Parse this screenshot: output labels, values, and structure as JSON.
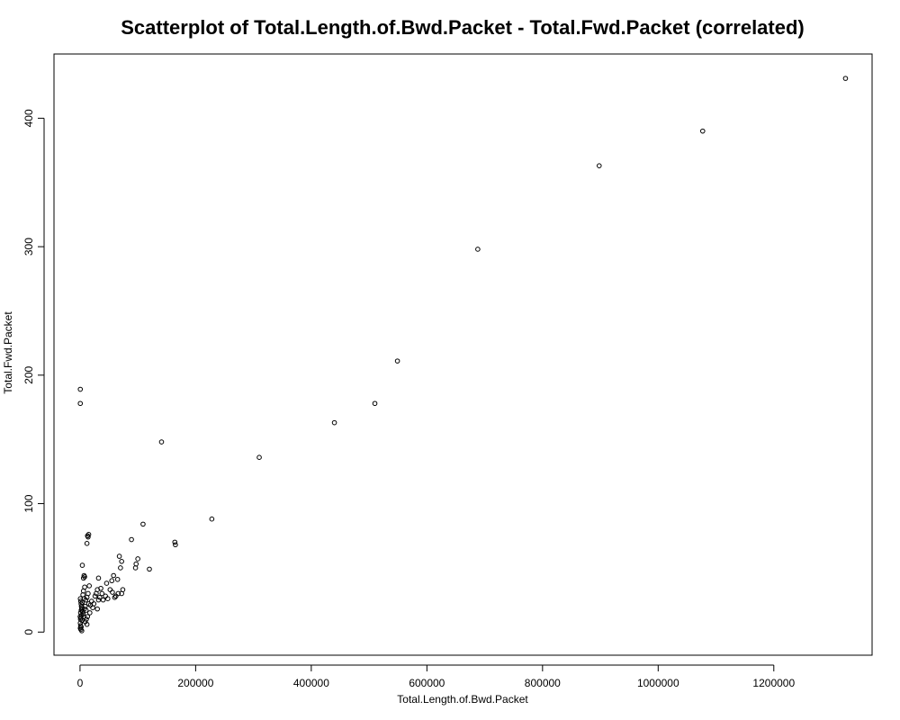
{
  "chart_data": {
    "type": "scatter",
    "title": "Scatterplot of Total.Length.of.Bwd.Packet - Total.Fwd.Packet (correlated)",
    "xlabel": "Total.Length.of.Bwd.Packet",
    "ylabel": "Total.Fwd.Packet",
    "xlim": [
      -45000,
      1370000
    ],
    "ylim": [
      -18,
      450
    ],
    "xticks": [
      0,
      200000,
      400000,
      600000,
      800000,
      1000000,
      1200000
    ],
    "xtick_labels": [
      "0",
      "200000",
      "400000",
      "600000",
      "800000",
      "1000000",
      "1200000"
    ],
    "yticks": [
      0,
      100,
      200,
      300,
      400
    ],
    "ytick_labels": [
      "0",
      "100",
      "200",
      "300",
      "400"
    ],
    "grid": false,
    "marker": "open-circle",
    "points": [
      [
        1324000,
        431
      ],
      [
        1077000,
        390
      ],
      [
        898000,
        363
      ],
      [
        688000,
        298
      ],
      [
        549000,
        211
      ],
      [
        510000,
        178
      ],
      [
        440000,
        163
      ],
      [
        310000,
        136
      ],
      [
        141000,
        148
      ],
      [
        228000,
        88
      ],
      [
        109000,
        84
      ],
      [
        89000,
        72
      ],
      [
        164000,
        70
      ],
      [
        165000,
        68
      ],
      [
        100000,
        57
      ],
      [
        97000,
        53
      ],
      [
        96000,
        50
      ],
      [
        120000,
        49
      ],
      [
        500,
        189
      ],
      [
        500,
        178
      ],
      [
        13000,
        75
      ],
      [
        15000,
        76
      ],
      [
        14000,
        74
      ],
      [
        12000,
        69
      ],
      [
        4000,
        52
      ],
      [
        7000,
        44
      ],
      [
        8000,
        43
      ],
      [
        6000,
        42
      ],
      [
        68000,
        59
      ],
      [
        72000,
        55
      ],
      [
        70000,
        50
      ],
      [
        65000,
        41
      ],
      [
        58000,
        44
      ],
      [
        55000,
        40
      ],
      [
        32000,
        42
      ],
      [
        46000,
        38
      ],
      [
        52000,
        33
      ],
      [
        56000,
        31
      ],
      [
        62000,
        28
      ],
      [
        74000,
        33
      ],
      [
        72000,
        30
      ],
      [
        66000,
        30
      ],
      [
        60000,
        27
      ],
      [
        36000,
        34
      ],
      [
        38000,
        30
      ],
      [
        44000,
        28
      ],
      [
        48000,
        26
      ],
      [
        40000,
        25
      ],
      [
        30000,
        33
      ],
      [
        28000,
        30
      ],
      [
        34000,
        27
      ],
      [
        32000,
        25
      ],
      [
        30000,
        18
      ],
      [
        24000,
        22
      ],
      [
        22000,
        19
      ],
      [
        26000,
        28
      ],
      [
        20000,
        24
      ],
      [
        18000,
        21
      ],
      [
        16000,
        36
      ],
      [
        14000,
        30
      ],
      [
        12000,
        27
      ],
      [
        10000,
        25
      ],
      [
        15000,
        22
      ],
      [
        17000,
        15
      ],
      [
        13000,
        12
      ],
      [
        11000,
        10
      ],
      [
        9000,
        8
      ],
      [
        12000,
        6
      ],
      [
        8000,
        35
      ],
      [
        6000,
        32
      ],
      [
        5000,
        29
      ],
      [
        7000,
        26
      ],
      [
        9000,
        20
      ],
      [
        4000,
        23
      ],
      [
        3000,
        19
      ],
      [
        2000,
        17
      ],
      [
        1000,
        15
      ],
      [
        2500,
        13
      ],
      [
        1500,
        11
      ],
      [
        3500,
        9
      ],
      [
        500,
        7
      ],
      [
        1000,
        5
      ],
      [
        2000,
        4
      ],
      [
        500,
        3
      ],
      [
        1500,
        2
      ],
      [
        3000,
        1
      ],
      [
        200,
        12
      ],
      [
        800,
        10
      ],
      [
        4500,
        16
      ],
      [
        5500,
        14
      ],
      [
        6500,
        12
      ],
      [
        7500,
        18
      ],
      [
        10500,
        17
      ],
      [
        600,
        26
      ],
      [
        1200,
        24
      ],
      [
        1800,
        22
      ],
      [
        2400,
        20
      ],
      [
        3200,
        18
      ]
    ]
  }
}
